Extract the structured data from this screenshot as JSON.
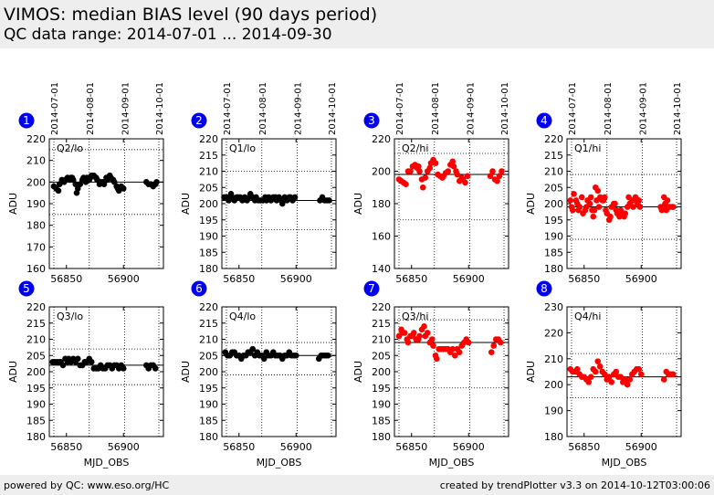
{
  "header": {
    "title": "VIMOS: median BIAS level (90 days period)",
    "subtitle": "QC data range: 2014-07-01 ... 2014-09-30"
  },
  "footer": {
    "left": "powered by QC: www.eso.org/HC",
    "right": "created by trendPlotter v3.3 on 2014-10-12T03:00:06"
  },
  "colors": {
    "black_series": "#000000",
    "red_series": "#ff0000",
    "badge": "#0000ee",
    "header_bg": "#eeeeee"
  },
  "date_labels": [
    "2014-07-01",
    "2014-08-01",
    "2014-09-01",
    "2014-10-01"
  ],
  "chart_data": [
    {
      "type": "scatter",
      "number": "1",
      "label": "Q2/lo",
      "color": "#000000",
      "xlabel": "",
      "ylabel": "ADU",
      "xlim": [
        56835,
        56935
      ],
      "xticks": [
        56850,
        56900
      ],
      "ylim": [
        160,
        220
      ],
      "yticks": [
        160,
        170,
        180,
        190,
        200,
        210,
        220
      ],
      "ref": 200,
      "dotted": [
        215,
        185
      ],
      "x": [
        56839,
        56841,
        56843,
        56844,
        56846,
        56848,
        56849,
        56851,
        56853,
        56854,
        56855,
        56856,
        56858,
        56859,
        56860,
        56862,
        56864,
        56865,
        56867,
        56868,
        56870,
        56871,
        56872,
        56874,
        56876,
        56877,
        56879,
        56880,
        56882,
        56883,
        56885,
        56886,
        56888,
        56889,
        56891,
        56892,
        56894,
        56895,
        56896,
        56898,
        56900,
        56920,
        56922,
        56924,
        56926,
        56928,
        56929
      ],
      "y": [
        198,
        197,
        196,
        199,
        201,
        200,
        201,
        202,
        201,
        202,
        202,
        201,
        199,
        195,
        197,
        199,
        201,
        202,
        200,
        202,
        201,
        202,
        203,
        203,
        202,
        201,
        199,
        200,
        200,
        199,
        202,
        201,
        203,
        202,
        201,
        200,
        198,
        197,
        196,
        198,
        197,
        200,
        199,
        199,
        198,
        199,
        200
      ]
    },
    {
      "type": "scatter",
      "number": "2",
      "label": "Q1/lo",
      "color": "#000000",
      "xlabel": "",
      "ylabel": "ADU",
      "xlim": [
        56835,
        56935
      ],
      "xticks": [
        56850,
        56900
      ],
      "ylim": [
        180,
        220
      ],
      "yticks": [
        180,
        185,
        190,
        195,
        200,
        205,
        210,
        215,
        220
      ],
      "ref": 201,
      "dotted": [
        210,
        192
      ],
      "x": [
        56837,
        56839,
        56841,
        56843,
        56844,
        56846,
        56848,
        56849,
        56851,
        56853,
        56855,
        56857,
        56859,
        56860,
        56862,
        56864,
        56865,
        56867,
        56869,
        56871,
        56873,
        56874,
        56876,
        56878,
        56880,
        56882,
        56883,
        56885,
        56887,
        56888,
        56890,
        56892,
        56894,
        56895,
        56897,
        56899,
        56921,
        56923,
        56925,
        56927,
        56929
      ],
      "y": [
        202,
        202,
        201,
        203,
        202,
        201,
        202,
        202,
        202,
        201,
        202,
        201,
        202,
        203,
        202,
        201,
        202,
        201,
        201,
        201,
        202,
        201,
        202,
        201,
        202,
        202,
        201,
        202,
        201,
        200,
        202,
        201,
        202,
        202,
        201,
        202,
        201,
        202,
        201,
        201,
        201
      ]
    },
    {
      "type": "scatter",
      "number": "3",
      "label": "Q2/hi",
      "color": "#ff0000",
      "xlabel": "",
      "ylabel": "ADU",
      "xlim": [
        56835,
        56935
      ],
      "xticks": [
        56850,
        56900
      ],
      "ylim": [
        140,
        220
      ],
      "yticks": [
        140,
        160,
        180,
        200,
        220
      ],
      "ref": 198,
      "dotted": [
        211,
        170
      ],
      "x": [
        56839,
        56841,
        56843,
        56845,
        56847,
        56849,
        56851,
        56853,
        56855,
        56856,
        56857,
        56859,
        56860,
        56862,
        56864,
        56866,
        56867,
        56869,
        56871,
        56873,
        56875,
        56877,
        56878,
        56880,
        56882,
        56884,
        56886,
        56887,
        56889,
        56890,
        56892,
        56894,
        56895,
        56897,
        56899,
        56919,
        56921,
        56923,
        56925,
        56927,
        56929
      ],
      "y": [
        195,
        194,
        193,
        192,
        200,
        200,
        203,
        204,
        202,
        203,
        200,
        195,
        190,
        196,
        200,
        202,
        205,
        207,
        205,
        198,
        197,
        196,
        197,
        199,
        200,
        204,
        206,
        203,
        200,
        198,
        194,
        196,
        195,
        193,
        197,
        197,
        200,
        195,
        194,
        197,
        200
      ]
    },
    {
      "type": "scatter",
      "number": "4",
      "label": "Q1/hi",
      "color": "#ff0000",
      "xlabel": "",
      "ylabel": "ADU",
      "xlim": [
        56835,
        56935
      ],
      "xticks": [
        56850,
        56900
      ],
      "ylim": [
        180,
        220
      ],
      "yticks": [
        180,
        185,
        190,
        195,
        200,
        205,
        210,
        215,
        220
      ],
      "ref": 199,
      "dotted": [
        209,
        189
      ],
      "x": [
        56838,
        56839,
        56840,
        56841,
        56843,
        56844,
        56845,
        56846,
        56848,
        56849,
        56851,
        56852,
        56853,
        56855,
        56856,
        56857,
        56858,
        56859,
        56860,
        56861,
        56862,
        56863,
        56864,
        56866,
        56867,
        56868,
        56869,
        56870,
        56872,
        56873,
        56874,
        56876,
        56877,
        56878,
        56879,
        56881,
        56882,
        56883,
        56885,
        56886,
        56888,
        56889,
        56890,
        56892,
        56893,
        56894,
        56895,
        56897,
        56898,
        56899,
        56917,
        56918,
        56919,
        56920,
        56921,
        56922,
        56923,
        56924,
        56925,
        56927,
        56928
      ],
      "y": [
        201,
        199,
        198,
        203,
        201,
        200,
        198,
        199,
        202,
        197,
        198,
        199,
        201,
        200,
        202,
        198,
        196,
        198,
        205,
        201,
        204,
        199,
        202,
        201,
        201,
        202,
        198,
        197,
        195,
        196,
        199,
        200,
        200,
        198,
        197,
        196,
        198,
        197,
        196,
        197,
        199,
        202,
        200,
        201,
        199,
        201,
        202,
        200,
        201,
        199,
        199,
        198,
        199,
        202,
        200,
        198,
        201,
        199,
        199,
        199,
        199
      ]
    },
    {
      "type": "scatter",
      "number": "5",
      "label": "Q3/lo",
      "color": "#000000",
      "xlabel": "MJD_OBS",
      "ylabel": "ADU",
      "xlim": [
        56835,
        56935
      ],
      "xticks": [
        56850,
        56900
      ],
      "ylim": [
        180,
        220
      ],
      "yticks": [
        180,
        185,
        190,
        195,
        200,
        205,
        210,
        215,
        220
      ],
      "ref": 202,
      "dotted": [
        207,
        196
      ],
      "x": [
        56838,
        56840,
        56842,
        56844,
        56845,
        56847,
        56849,
        56851,
        56852,
        56854,
        56856,
        56858,
        56860,
        56862,
        56864,
        56866,
        56868,
        56870,
        56872,
        56874,
        56876,
        56878,
        56880,
        56882,
        56884,
        56886,
        56888,
        56890,
        56892,
        56894,
        56896,
        56898,
        56900,
        56920,
        56922,
        56924,
        56926,
        56928
      ],
      "y": [
        203,
        203,
        203,
        203,
        203,
        202,
        204,
        203,
        204,
        203,
        204,
        203,
        204,
        202,
        202,
        203,
        203,
        204,
        203,
        201,
        201,
        201,
        202,
        201,
        201,
        202,
        202,
        201,
        202,
        202,
        201,
        202,
        201,
        202,
        201,
        202,
        202,
        201
      ]
    },
    {
      "type": "scatter",
      "number": "6",
      "label": "Q4/lo",
      "color": "#000000",
      "xlabel": "MJD_OBS",
      "ylabel": "ADU",
      "xlim": [
        56835,
        56935
      ],
      "xticks": [
        56850,
        56900
      ],
      "ylim": [
        180,
        220
      ],
      "yticks": [
        180,
        185,
        190,
        195,
        200,
        205,
        210,
        215,
        220
      ],
      "ref": 205,
      "dotted": [
        209,
        199
      ],
      "x": [
        56838,
        56840,
        56842,
        56844,
        56846,
        56848,
        56850,
        56852,
        56854,
        56856,
        56858,
        56860,
        56862,
        56864,
        56866,
        56868,
        56870,
        56872,
        56874,
        56876,
        56878,
        56880,
        56882,
        56884,
        56886,
        56888,
        56890,
        56892,
        56894,
        56896,
        56898,
        56900,
        56920,
        56922,
        56924,
        56926,
        56928
      ],
      "y": [
        206,
        205,
        205,
        206,
        206,
        205,
        205,
        204,
        205,
        205,
        206,
        206,
        207,
        205,
        206,
        205,
        205,
        204,
        206,
        205,
        205,
        206,
        205,
        205,
        205,
        204,
        205,
        205,
        206,
        205,
        205,
        205,
        204,
        205,
        205,
        205,
        205
      ]
    },
    {
      "type": "scatter",
      "number": "7",
      "label": "Q3/hi",
      "color": "#ff0000",
      "xlabel": "MJD_OBS",
      "ylabel": "ADU",
      "xlim": [
        56835,
        56935
      ],
      "xticks": [
        56850,
        56900
      ],
      "ylim": [
        180,
        220
      ],
      "yticks": [
        180,
        185,
        190,
        195,
        200,
        205,
        210,
        215,
        220
      ],
      "ref": 209,
      "dotted": [
        216,
        195
      ],
      "x": [
        56839,
        56841,
        56842,
        56844,
        56846,
        56847,
        56849,
        56851,
        56852,
        56854,
        56856,
        56857,
        56859,
        56861,
        56862,
        56864,
        56866,
        56868,
        56869,
        56871,
        56872,
        56874,
        56876,
        56878,
        56880,
        56882,
        56884,
        56886,
        56888,
        56890,
        56892,
        56894,
        56896,
        56898,
        56900,
        56920,
        56922,
        56924,
        56926,
        56928
      ],
      "y": [
        211,
        213,
        212,
        212,
        210,
        209,
        211,
        211,
        212,
        210,
        210,
        211,
        213,
        214,
        211,
        212,
        209,
        210,
        208,
        205,
        204,
        207,
        207,
        207,
        207,
        207,
        206,
        207,
        205,
        207,
        206,
        208,
        209,
        210,
        209,
        206,
        208,
        210,
        210,
        209
      ]
    },
    {
      "type": "scatter",
      "number": "8",
      "label": "Q4/hi",
      "color": "#ff0000",
      "xlabel": "MJD_OBS",
      "ylabel": "ADU",
      "xlim": [
        56835,
        56935
      ],
      "xticks": [
        56850,
        56900
      ],
      "ylim": [
        180,
        230
      ],
      "yticks": [
        180,
        190,
        200,
        210,
        220,
        230
      ],
      "ref": 203,
      "dotted": [
        212,
        195
      ],
      "x": [
        56838,
        56840,
        56842,
        56844,
        56846,
        56848,
        56850,
        56852,
        56854,
        56856,
        56858,
        56860,
        56862,
        56864,
        56866,
        56868,
        56870,
        56872,
        56874,
        56876,
        56878,
        56880,
        56882,
        56884,
        56886,
        56888,
        56890,
        56892,
        56894,
        56896,
        56898,
        56900,
        56920,
        56922,
        56924,
        56926,
        56928
      ],
      "y": [
        206,
        205,
        205,
        206,
        204,
        203,
        203,
        202,
        201,
        203,
        206,
        205,
        209,
        207,
        205,
        204,
        202,
        203,
        201,
        204,
        205,
        203,
        203,
        201,
        202,
        200,
        202,
        204,
        205,
        206,
        206,
        204,
        202,
        205,
        204,
        204,
        204
      ]
    }
  ]
}
